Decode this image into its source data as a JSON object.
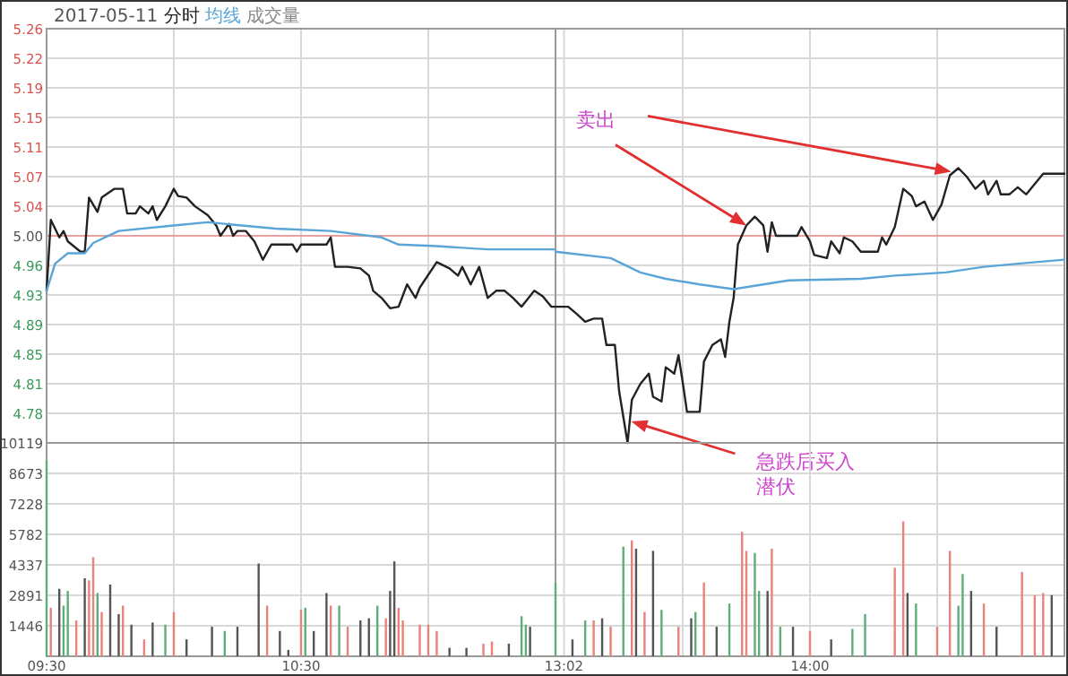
{
  "chart_data": [
    {
      "type": "line",
      "title": "2017-05-11",
      "legend": "top left",
      "grid": true,
      "tick_labels": "y",
      "xlim": [
        "2017-05-11T09:30",
        "2017-05-11T11:30"
      ],
      "xticks": [
        {
          "value": "2017-05-11T09:30",
          "label": null
        },
        {
          "value": "2017-05-11T10:00",
          "label": null
        },
        {
          "value": "2017-05-11T10:30",
          "label": null
        },
        {
          "value": "2017-05-11T11:00",
          "label": null
        },
        {
          "value": "2017-05-11T11:30",
          "label": null
        }
      ],
      "ylim": [
        4.74,
        5.26
      ],
      "yticks": [
        {
          "value": 4.74,
          "label": null
        },
        {
          "value": 4.7771,
          "label": "4.78"
        },
        {
          "value": 4.8143,
          "label": "4.81"
        },
        {
          "value": 4.8514,
          "label": "4.85"
        },
        {
          "value": 4.8886,
          "label": "4.89"
        },
        {
          "value": 4.9257,
          "label": "4.93"
        },
        {
          "value": 4.9629,
          "label": "4.96"
        },
        {
          "value": 5.0,
          "label": "5.00"
        },
        {
          "value": 5.0371,
          "label": "5.04"
        },
        {
          "value": 5.0743,
          "label": "5.07"
        },
        {
          "value": 5.1114,
          "label": "5.11"
        },
        {
          "value": 5.1486,
          "label": "5.15"
        },
        {
          "value": 5.1857,
          "label": "5.19"
        },
        {
          "value": 5.2229,
          "label": "5.22"
        },
        {
          "value": 5.26,
          "label": "5.26"
        }
      ],
      "ref_lines": [
        {
          "axis": "y",
          "value": 5.0,
          "color": "#e8a0a0"
        }
      ],
      "series": [
        {
          "name": "分时",
          "color": "#222222",
          "x": [
            "2017-05-11T09:30",
            "2017-05-11T09:31",
            "2017-05-11T09:33",
            "2017-05-11T09:34",
            "2017-05-11T09:35",
            "2017-05-11T09:38",
            "2017-05-11T09:39",
            "2017-05-11T09:40",
            "2017-05-11T09:42",
            "2017-05-11T09:43",
            "2017-05-11T09:46",
            "2017-05-11T09:48",
            "2017-05-11T09:49",
            "2017-05-11T09:51",
            "2017-05-11T09:52",
            "2017-05-11T09:54",
            "2017-05-11T09:55",
            "2017-05-11T09:56",
            "2017-05-11T09:58",
            "2017-05-11T10:00",
            "2017-05-11T10:01",
            "2017-05-11T10:03",
            "2017-05-11T10:05",
            "2017-05-11T10:08",
            "2017-05-11T10:10",
            "2017-05-11T10:11",
            "2017-05-11T10:13",
            "2017-05-11T10:14",
            "2017-05-11T10:15",
            "2017-05-11T10:17",
            "2017-05-11T10:19",
            "2017-05-11T10:21",
            "2017-05-11T10:23",
            "2017-05-11T10:28",
            "2017-05-11T10:29",
            "2017-05-11T10:30",
            "2017-05-11T10:36",
            "2017-05-11T10:37",
            "2017-05-11T10:38",
            "2017-05-11T10:41",
            "2017-05-11T10:44",
            "2017-05-11T10:46",
            "2017-05-11T10:47",
            "2017-05-11T10:49",
            "2017-05-11T10:51",
            "2017-05-11T10:53",
            "2017-05-11T10:55",
            "2017-05-11T10:57",
            "2017-05-11T10:58",
            "2017-05-11T11:02",
            "2017-05-11T11:05",
            "2017-05-11T11:07",
            "2017-05-11T11:08",
            "2017-05-11T11:10",
            "2017-05-11T11:12",
            "2017-05-11T11:14",
            "2017-05-11T11:16",
            "2017-05-11T11:18",
            "2017-05-11T11:20",
            "2017-05-11T11:22",
            "2017-05-11T11:25",
            "2017-05-11T11:27",
            "2017-05-11T11:29",
            "2017-05-11T11:30"
          ],
          "values": [
            4.931,
            5.02,
            4.998,
            5.006,
            4.993,
            4.98,
            4.98,
            5.048,
            5.03,
            5.048,
            5.059,
            5.059,
            5.028,
            5.028,
            5.037,
            5.028,
            5.037,
            5.02,
            5.037,
            5.059,
            5.05,
            5.048,
            5.037,
            5.026,
            5.013,
            5.0,
            5.015,
            5.0,
            5.006,
            5.006,
            4.993,
            4.97,
            4.989,
            4.989,
            4.98,
            4.989,
            4.989,
            4.998,
            4.961,
            4.961,
            4.959,
            4.95,
            4.931,
            4.922,
            4.909,
            4.911,
            4.939,
            4.922,
            4.935,
            4.967,
            4.959,
            4.95,
            4.961,
            4.939,
            4.961,
            4.922,
            4.931,
            4.931,
            4.922,
            4.911,
            4.931,
            4.924,
            4.911,
            4.911
          ]
        },
        {
          "name": "均线",
          "color": "#5aa5d8",
          "x": [
            "2017-05-11T09:30",
            "2017-05-11T09:32",
            "2017-05-11T09:35",
            "2017-05-11T09:39",
            "2017-05-11T09:41",
            "2017-05-11T09:47",
            "2017-05-11T10:00",
            "2017-05-11T10:08",
            "2017-05-11T10:16",
            "2017-05-11T10:24",
            "2017-05-11T10:37",
            "2017-05-11T10:49",
            "2017-05-11T10:53",
            "2017-05-11T11:02",
            "2017-05-11T11:14",
            "2017-05-11T11:27",
            "2017-05-11T11:30"
          ],
          "values": [
            4.931,
            4.965,
            4.978,
            4.978,
            4.991,
            5.006,
            5.013,
            5.017,
            5.013,
            5.009,
            5.006,
            4.998,
            4.989,
            4.987,
            4.983,
            4.983,
            4.983
          ]
        }
      ]
    },
    {
      "type": "line",
      "grid": true,
      "tick_labels": false,
      "xlim": [
        "2017-05-11T13:00",
        "2017-05-11T15:00"
      ],
      "xticks": [
        {
          "value": "2017-05-11T13:02",
          "label": null
        },
        {
          "value": "2017-05-11T13:30",
          "label": null
        },
        {
          "value": "2017-05-11T14:00",
          "label": null
        },
        {
          "value": "2017-05-11T14:30",
          "label": null
        },
        {
          "value": "2017-05-11T15:00",
          "label": null
        }
      ],
      "ylim": [
        4.74,
        5.26
      ],
      "yticks": [
        {
          "value": 4.74,
          "label": null
        },
        {
          "value": 4.7771,
          "label": null
        },
        {
          "value": 4.8143,
          "label": null
        },
        {
          "value": 4.8514,
          "label": null
        },
        {
          "value": 4.8886,
          "label": null
        },
        {
          "value": 4.9257,
          "label": null
        },
        {
          "value": 4.9629,
          "label": null
        },
        {
          "value": 5.0,
          "label": null
        },
        {
          "value": 5.0371,
          "label": null
        },
        {
          "value": 5.0743,
          "label": null
        },
        {
          "value": 5.1114,
          "label": null
        },
        {
          "value": 5.1486,
          "label": null
        },
        {
          "value": 5.1857,
          "label": null
        },
        {
          "value": 5.2229,
          "label": null
        },
        {
          "value": 5.26,
          "label": null
        }
      ],
      "ref_lines": [
        {
          "axis": "y",
          "value": 5.0,
          "color": "#e8a0a0"
        }
      ],
      "series": [
        {
          "color": "#222222",
          "x": [
            "2017-05-11T13:00",
            "2017-05-11T13:03",
            "2017-05-11T13:05",
            "2017-05-11T13:07",
            "2017-05-11T13:09",
            "2017-05-11T13:11",
            "2017-05-11T13:12",
            "2017-05-11T13:14",
            "2017-05-11T13:15",
            "2017-05-11T13:17",
            "2017-05-11T13:18",
            "2017-05-11T13:20",
            "2017-05-11T13:22",
            "2017-05-11T13:23",
            "2017-05-11T13:25",
            "2017-05-11T13:26",
            "2017-05-11T13:28",
            "2017-05-11T13:29",
            "2017-05-11T13:30",
            "2017-05-11T13:31",
            "2017-05-11T13:34",
            "2017-05-11T13:35",
            "2017-05-11T13:37",
            "2017-05-11T13:39",
            "2017-05-11T13:40",
            "2017-05-11T13:41",
            "2017-05-11T13:42",
            "2017-05-11T13:43",
            "2017-05-11T13:45",
            "2017-05-11T13:47",
            "2017-05-11T13:49",
            "2017-05-11T13:50",
            "2017-05-11T13:51",
            "2017-05-11T13:52",
            "2017-05-11T13:57",
            "2017-05-11T13:58",
            "2017-05-11T14:00",
            "2017-05-11T14:01",
            "2017-05-11T14:04",
            "2017-05-11T14:05",
            "2017-05-11T14:07",
            "2017-05-11T14:08",
            "2017-05-11T14:10",
            "2017-05-11T14:12",
            "2017-05-11T14:16",
            "2017-05-11T14:17",
            "2017-05-11T14:18",
            "2017-05-11T14:20",
            "2017-05-11T14:22",
            "2017-05-11T14:24",
            "2017-05-11T14:25",
            "2017-05-11T14:27",
            "2017-05-11T14:29",
            "2017-05-11T14:31",
            "2017-05-11T14:33",
            "2017-05-11T14:35",
            "2017-05-11T14:37",
            "2017-05-11T14:39",
            "2017-05-11T14:41",
            "2017-05-11T14:42",
            "2017-05-11T14:44",
            "2017-05-11T14:45",
            "2017-05-11T14:47",
            "2017-05-11T14:49",
            "2017-05-11T14:51",
            "2017-05-11T14:53",
            "2017-05-11T14:55",
            "2017-05-11T15:00"
          ],
          "values": [
            4.911,
            4.911,
            4.902,
            4.892,
            4.896,
            4.896,
            4.863,
            4.863,
            4.805,
            4.74,
            4.794,
            4.814,
            4.827,
            4.798,
            4.792,
            4.835,
            4.827,
            4.85,
            4.816,
            4.779,
            4.779,
            4.842,
            4.863,
            4.87,
            4.848,
            4.892,
            4.922,
            4.989,
            5.013,
            5.024,
            5.013,
            4.98,
            5.017,
            5.0,
            5.0,
            5.011,
            4.993,
            4.976,
            4.972,
            4.993,
            4.978,
            4.998,
            4.993,
            4.98,
            4.98,
            4.998,
            4.989,
            5.011,
            5.059,
            5.05,
            5.037,
            5.043,
            5.02,
            5.039,
            5.076,
            5.085,
            5.074,
            5.059,
            5.069,
            5.052,
            5.069,
            5.052,
            5.052,
            5.061,
            5.052,
            5.065,
            5.078,
            5.078
          ]
        },
        {
          "color": "#5aa5d8",
          "x": [
            "2017-05-11T13:00",
            "2017-05-11T13:13",
            "2017-05-11T13:20",
            "2017-05-11T13:26",
            "2017-05-11T13:34",
            "2017-05-11T13:42",
            "2017-05-11T13:49",
            "2017-05-11T13:55",
            "2017-05-11T14:12",
            "2017-05-11T14:20",
            "2017-05-11T14:32",
            "2017-05-11T14:41",
            "2017-05-11T14:49",
            "2017-05-11T15:00"
          ],
          "values": [
            4.98,
            4.972,
            4.954,
            4.946,
            4.939,
            4.933,
            4.939,
            4.944,
            4.946,
            4.95,
            4.954,
            4.961,
            4.965,
            4.97
          ]
        }
      ],
      "annotations": [
        "卖出",
        "急跌后买入潜伏"
      ]
    },
    {
      "type": "bar",
      "grid": true,
      "xlim": [
        "2017-05-11T09:30",
        "2017-05-11T11:30"
      ],
      "xticks": [
        {
          "value": "2017-05-11T09:30",
          "label": "09:30"
        },
        {
          "value": "2017-05-11T10:00",
          "label": null
        },
        {
          "value": "2017-05-11T10:30",
          "label": "10:30"
        },
        {
          "value": "2017-05-11T11:00",
          "label": null
        },
        {
          "value": "2017-05-11T11:30",
          "label": null
        }
      ],
      "ylim": [
        0,
        10119
      ],
      "yticks": [
        1446,
        2891,
        4337,
        5782,
        7228,
        8673,
        10119
      ],
      "series": [
        {
          "name": "成交量",
          "color": "#888888",
          "x": [
            "2017-05-11T09:30",
            "2017-05-11T09:31",
            "2017-05-11T09:33",
            "2017-05-11T09:34",
            "2017-05-11T09:35",
            "2017-05-11T09:37",
            "2017-05-11T09:39",
            "2017-05-11T09:40",
            "2017-05-11T09:41",
            "2017-05-11T09:42",
            "2017-05-11T09:43",
            "2017-05-11T09:45",
            "2017-05-11T09:47",
            "2017-05-11T09:48",
            "2017-05-11T09:50",
            "2017-05-11T09:53",
            "2017-05-11T09:55",
            "2017-05-11T09:58",
            "2017-05-11T10:00",
            "2017-05-11T10:03",
            "2017-05-11T10:09",
            "2017-05-11T10:12",
            "2017-05-11T10:15",
            "2017-05-11T10:20",
            "2017-05-11T10:22",
            "2017-05-11T10:25",
            "2017-05-11T10:27",
            "2017-05-11T10:30",
            "2017-05-11T10:31",
            "2017-05-11T10:33",
            "2017-05-11T10:36",
            "2017-05-11T10:37",
            "2017-05-11T10:39",
            "2017-05-11T10:41",
            "2017-05-11T10:44",
            "2017-05-11T10:46",
            "2017-05-11T10:48",
            "2017-05-11T10:50",
            "2017-05-11T10:51",
            "2017-05-11T10:52",
            "2017-05-11T10:53",
            "2017-05-11T10:54",
            "2017-05-11T10:58",
            "2017-05-11T11:00",
            "2017-05-11T11:02",
            "2017-05-11T11:05",
            "2017-05-11T11:09",
            "2017-05-11T11:13",
            "2017-05-11T11:15",
            "2017-05-11T11:19",
            "2017-05-11T11:22",
            "2017-05-11T11:23",
            "2017-05-11T11:24"
          ],
          "values": [
            9300,
            2300,
            3200,
            2400,
            3100,
            1700,
            3700,
            3600,
            4700,
            3000,
            2100,
            3400,
            2000,
            2400,
            1500,
            800,
            1600,
            1500,
            2100,
            800,
            1400,
            1200,
            1400,
            4400,
            2400,
            1200,
            300,
            2200,
            2300,
            1200,
            3000,
            2400,
            2400,
            1400,
            1700,
            1800,
            2400,
            1800,
            3100,
            4500,
            2300,
            1700,
            1500,
            1500,
            1200,
            400,
            400,
            600,
            700,
            600,
            1900,
            1500,
            1400
          ],
          "colors": [
            "#5fae7a",
            "#e8827d",
            "#555555",
            "#5fae7a",
            "#5fae7a",
            "#e8827d",
            "#555555",
            "#e8827d",
            "#e8827d",
            "#5fae7a",
            "#e8827d",
            "#555555",
            "#555555",
            "#e8827d",
            "#555555",
            "#e8827d",
            "#555555",
            "#5fae7a",
            "#e8827d",
            "#555555",
            "#555555",
            "#5fae7a",
            "#555555",
            "#555555",
            "#e8827d",
            "#555555",
            "#555555",
            "#e8827d",
            "#5fae7a",
            "#555555",
            "#555555",
            "#e8827d",
            "#5fae7a",
            "#e8827d",
            "#555555",
            "#555555",
            "#5fae7a",
            "#e8827d",
            "#555555",
            "#555555",
            "#e8827d",
            "#e8827d",
            "#e8827d",
            "#e8827d",
            "#e8827d",
            "#555555",
            "#555555",
            "#e8827d",
            "#e8827d",
            "#555555",
            "#5fae7a",
            "#5fae7a",
            "#555555"
          ]
        }
      ]
    },
    {
      "type": "bar",
      "grid": true,
      "tick_labels": "x",
      "xlim": [
        "2017-05-11T13:00",
        "2017-05-11T15:00"
      ],
      "xticks": [
        {
          "value": "2017-05-11T13:02",
          "label": "13:02"
        },
        {
          "value": "2017-05-11T13:30",
          "label": null
        },
        {
          "value": "2017-05-11T14:00",
          "label": "14:00"
        },
        {
          "value": "2017-05-11T14:30",
          "label": null
        },
        {
          "value": "2017-05-11T15:00",
          "label": null
        }
      ],
      "ylim": [
        0,
        10119
      ],
      "yticks": [
        1446,
        2891,
        4337,
        5782,
        7228,
        8673,
        10119
      ],
      "series": [
        {
          "x": [
            "2017-05-11T13:00",
            "2017-05-11T13:04",
            "2017-05-11T13:07",
            "2017-05-11T13:09",
            "2017-05-11T13:11",
            "2017-05-11T13:13",
            "2017-05-11T13:16",
            "2017-05-11T13:18",
            "2017-05-11T13:19",
            "2017-05-11T13:21",
            "2017-05-11T13:23",
            "2017-05-11T13:25",
            "2017-05-11T13:29",
            "2017-05-11T13:32",
            "2017-05-11T13:33",
            "2017-05-11T13:35",
            "2017-05-11T13:38",
            "2017-05-11T13:41",
            "2017-05-11T13:44",
            "2017-05-11T13:45",
            "2017-05-11T13:47",
            "2017-05-11T13:48",
            "2017-05-11T13:50",
            "2017-05-11T13:51",
            "2017-05-11T13:53",
            "2017-05-11T13:56",
            "2017-05-11T14:00",
            "2017-05-11T14:05",
            "2017-05-11T14:10",
            "2017-05-11T14:13",
            "2017-05-11T14:20",
            "2017-05-11T14:22",
            "2017-05-11T14:23",
            "2017-05-11T14:25",
            "2017-05-11T14:30",
            "2017-05-11T14:33",
            "2017-05-11T14:35",
            "2017-05-11T14:36",
            "2017-05-11T14:38",
            "2017-05-11T14:41",
            "2017-05-11T14:44",
            "2017-05-11T14:50",
            "2017-05-11T14:53",
            "2017-05-11T14:55",
            "2017-05-11T14:57"
          ],
          "values": [
            3500,
            800,
            1700,
            1700,
            1800,
            1400,
            5200,
            5500,
            5100,
            2100,
            5000,
            2200,
            1400,
            1800,
            2100,
            3500,
            1400,
            2500,
            5900,
            5000,
            4900,
            3100,
            3100,
            5100,
            1400,
            1400,
            1200,
            800,
            1300,
            2000,
            4200,
            6400,
            3000,
            2500,
            1400,
            5000,
            2400,
            3900,
            3100,
            2500,
            1400,
            4000,
            2900,
            3000,
            2900
          ],
          "colors": [
            "#5fae7a",
            "#555555",
            "#5fae7a",
            "#e8827d",
            "#555555",
            "#e8827d",
            "#5fae7a",
            "#e8827d",
            "#555555",
            "#e8827d",
            "#555555",
            "#5fae7a",
            "#e8827d",
            "#555555",
            "#5fae7a",
            "#e8827d",
            "#555555",
            "#5fae7a",
            "#e8827d",
            "#e8827d",
            "#5fae7a",
            "#5fae7a",
            "#555555",
            "#e8827d",
            "#5fae7a",
            "#555555",
            "#e8827d",
            "#555555",
            "#5fae7a",
            "#5fae7a",
            "#e8827d",
            "#e8827d",
            "#555555",
            "#5fae7a",
            "#e8827d",
            "#e8827d",
            "#5fae7a",
            "#5fae7a",
            "#555555",
            "#e8827d",
            "#555555",
            "#e8827d",
            "#e8827d",
            "#e8827d",
            "#555555"
          ]
        }
      ]
    }
  ]
}
